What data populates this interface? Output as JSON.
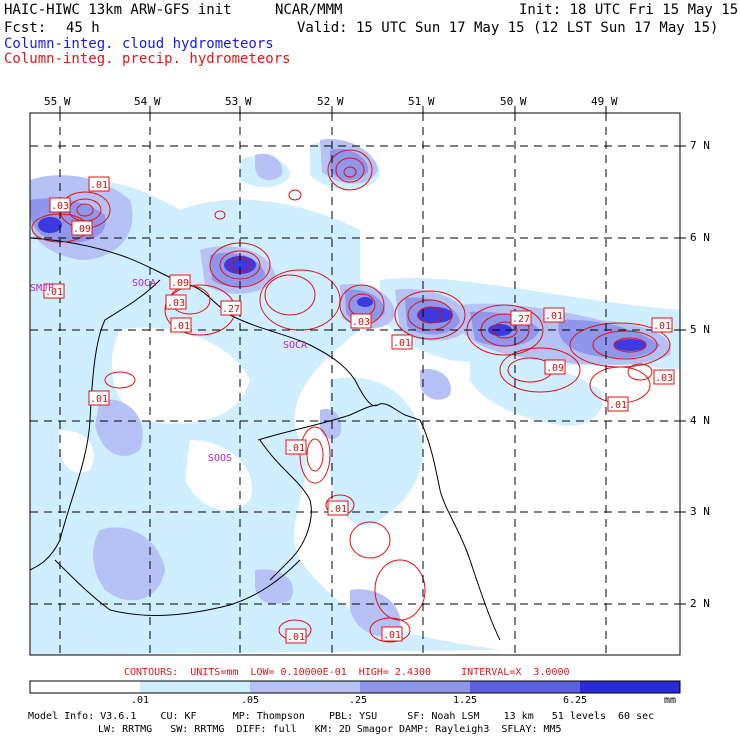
{
  "header": {
    "model_title": "HAIC-HIWC 13km ARW-GFS init",
    "org": "NCAR/MMM",
    "init": "Init: 18 UTC Fri 15 May 15",
    "fcst_label": "Fcst:",
    "fcst_value": "45 h",
    "valid": "Valid: 15 UTC Sun 17 May 15 (12 LST Sun 17 May 15)",
    "field1": "Column-integ. cloud hydrometeors",
    "field2": "Column-integ. precip. hydrometeors"
  },
  "colors": {
    "field1": "#1a1ad8",
    "field2": "#d81a1a",
    "shade_levels": [
      "#ffffff",
      "#cfeeff",
      "#b6c2f5",
      "#8f96ec",
      "#5b5fe0",
      "#2a2ad8"
    ]
  },
  "axes": {
    "lon_labels": [
      "55 W",
      "54 W",
      "53 W",
      "52 W",
      "51 W",
      "50 W",
      "49 W"
    ],
    "lat_labels": [
      "7 N",
      "6 N",
      "5 N",
      "4 N",
      "3 N",
      "2 N"
    ]
  },
  "stations": [
    "SMJP",
    "SOCA",
    "SOOS",
    "SOCA"
  ],
  "contour_labels": [
    ".01",
    ".03",
    ".09",
    ".01",
    ".09",
    ".03",
    ".01",
    ".27",
    ".03",
    ".01",
    ".27",
    ".01",
    ".01",
    ".09",
    ".03",
    ".01",
    ".01",
    ".01",
    ".01",
    ".01",
    ".01"
  ],
  "footer": {
    "contours_line": "CONTOURS:  UNITS=mm  LOW= 0.10000E-01  HIGH= 2.4300     INTERVAL=X  3.0000",
    "colorbar_ticks": [
      ".01",
      ".05",
      ".25",
      "1.25",
      "6.25"
    ],
    "colorbar_unit": "mm",
    "info_line1": "Model Info: V3.6.1    CU: KF      MP: Thompson    PBL: YSU     SF: Noah LSM    13 km   51 levels  60 sec",
    "info_line2": "LW: RRTMG   SW: RRTMG  DIFF: full   KM: 2D Smagor DAMP: Rayleigh3  SFLAY: MM5"
  }
}
